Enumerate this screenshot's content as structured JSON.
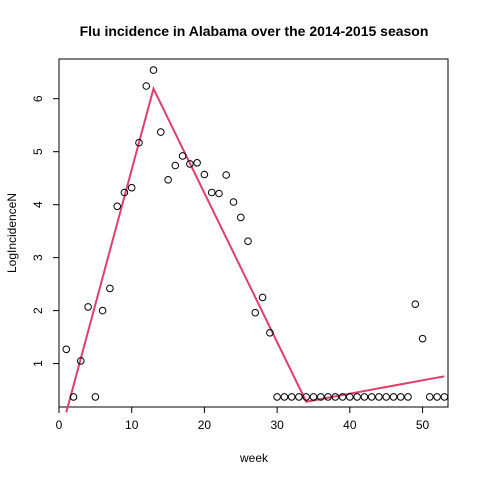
{
  "chart_data": {
    "type": "scatter",
    "title": "Flu incidence in Alabama over the 2014-2015 season",
    "xlabel": "week",
    "ylabel": "LogIncidenceN",
    "xlim": [
      0,
      53.5
    ],
    "ylim": [
      0.18,
      6.75
    ],
    "x_ticks": [
      0,
      10,
      20,
      30,
      40,
      50
    ],
    "y_ticks": [
      1,
      2,
      3,
      4,
      5,
      6
    ],
    "grid": false,
    "legend": "none",
    "colors": {
      "points": "#000000",
      "fit_line": "#DF3F6A",
      "axes": "#000000"
    },
    "series": [
      {
        "kind": "points",
        "x": [
          1,
          2,
          3,
          4,
          5,
          6,
          7,
          8,
          9,
          10,
          11,
          12,
          13,
          14,
          15,
          16,
          17,
          18,
          19,
          20,
          21,
          22,
          23,
          24,
          25,
          26,
          27,
          28,
          29,
          30,
          31,
          32,
          33,
          34,
          35,
          36,
          37,
          38,
          39,
          40,
          41,
          42,
          43,
          44,
          45,
          46,
          47,
          48,
          49,
          50,
          51,
          52,
          53
        ],
        "y": [
          1.27,
          0.37,
          1.05,
          2.07,
          0.37,
          2.0,
          2.42,
          3.97,
          4.23,
          4.32,
          5.17,
          6.24,
          6.54,
          5.37,
          4.47,
          4.74,
          4.92,
          4.77,
          4.79,
          4.57,
          4.23,
          4.21,
          4.56,
          4.05,
          3.76,
          3.31,
          1.96,
          2.25,
          1.58,
          0.37,
          0.37,
          0.37,
          0.37,
          0.37,
          0.37,
          0.37,
          0.37,
          0.37,
          0.37,
          0.37,
          0.37,
          0.37,
          0.37,
          0.37,
          0.37,
          0.37,
          0.37,
          0.37,
          2.12,
          1.47,
          0.37,
          0.37,
          0.37
        ]
      },
      {
        "kind": "line",
        "x": [
          1,
          13,
          34,
          53
        ],
        "y": [
          0.08,
          6.19,
          0.28,
          0.76
        ]
      }
    ]
  }
}
